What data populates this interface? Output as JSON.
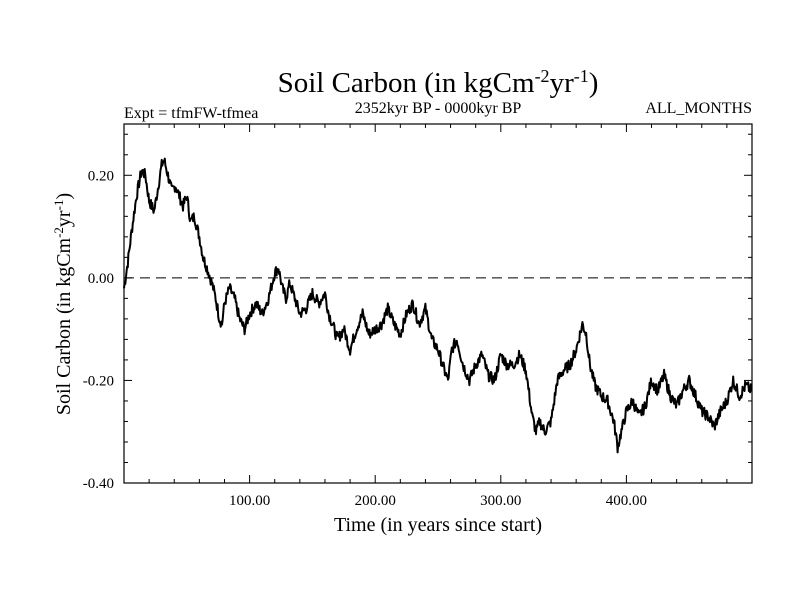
{
  "chart_data": {
    "type": "line",
    "title": "Soil Carbon (in kgCm",
    "title_unit_exponents": [
      "-2",
      "yr",
      "-1",
      ")"
    ],
    "subtitle_left": "Expt = tfmFW-tfmea",
    "subtitle_center": "2352kyr BP - 0000kyr BP",
    "subtitle_right": "ALL_MONTHS",
    "xlabel": "Time (in years since start)",
    "ylabel": "Soil Carbon (in kgCm",
    "ylabel_unit_exponents": [
      "-2",
      "yr",
      "-1",
      ")"
    ],
    "xlim": [
      0,
      500
    ],
    "ylim": [
      -0.4,
      0.3
    ],
    "x_ticks": [
      {
        "value": 100,
        "label": "100.00"
      },
      {
        "value": 200,
        "label": "200.00"
      },
      {
        "value": 300,
        "label": "300.00"
      },
      {
        "value": 400,
        "label": "400.00"
      }
    ],
    "y_ticks": [
      {
        "value": -0.4,
        "label": "-0.40"
      },
      {
        "value": -0.2,
        "label": "-0.20"
      },
      {
        "value": 0.0,
        "label": "0.00"
      },
      {
        "value": 0.2,
        "label": "0.20"
      }
    ],
    "reference_line": {
      "y": 0.0,
      "style": "dashed"
    },
    "line_color": "#000000",
    "series": [
      {
        "name": "Soil Carbon",
        "x": [
          0,
          3,
          6,
          10,
          14,
          17,
          20,
          24,
          28,
          30,
          32,
          35,
          38,
          41,
          44,
          47,
          50,
          53,
          56,
          60,
          63,
          66,
          70,
          73,
          76,
          78,
          80,
          84,
          88,
          92,
          96,
          100,
          105,
          110,
          115,
          120,
          123,
          126,
          129,
          132,
          136,
          140,
          145,
          150,
          155,
          160,
          163,
          166,
          170,
          175,
          180,
          185,
          190,
          195,
          200,
          205,
          210,
          215,
          220,
          225,
          230,
          235,
          240,
          245,
          250,
          255,
          258,
          261,
          265,
          270,
          275,
          280,
          285,
          290,
          295,
          300,
          305,
          310,
          315,
          320,
          325,
          328,
          331,
          335,
          340,
          345,
          350,
          355,
          360,
          365,
          368,
          371,
          375,
          380,
          385,
          390,
          393,
          396,
          400,
          405,
          410,
          415,
          420,
          425,
          430,
          435,
          440,
          445,
          450,
          455,
          460,
          465,
          470,
          475,
          480,
          485,
          490,
          495,
          500
        ],
        "y": [
          -0.02,
          0.03,
          0.09,
          0.16,
          0.21,
          0.2,
          0.15,
          0.13,
          0.19,
          0.22,
          0.23,
          0.2,
          0.17,
          0.18,
          0.16,
          0.14,
          0.16,
          0.11,
          0.12,
          0.08,
          0.04,
          0.02,
          -0.01,
          -0.04,
          -0.08,
          -0.09,
          -0.05,
          -0.02,
          -0.04,
          -0.08,
          -0.1,
          -0.07,
          -0.05,
          -0.07,
          -0.04,
          0.01,
          0.02,
          -0.02,
          -0.04,
          -0.01,
          -0.04,
          -0.07,
          -0.06,
          -0.03,
          -0.05,
          -0.03,
          -0.07,
          -0.09,
          -0.12,
          -0.1,
          -0.14,
          -0.1,
          -0.07,
          -0.11,
          -0.1,
          -0.09,
          -0.06,
          -0.09,
          -0.11,
          -0.07,
          -0.05,
          -0.09,
          -0.06,
          -0.12,
          -0.14,
          -0.18,
          -0.2,
          -0.14,
          -0.12,
          -0.17,
          -0.2,
          -0.17,
          -0.15,
          -0.19,
          -0.2,
          -0.15,
          -0.17,
          -0.17,
          -0.15,
          -0.18,
          -0.27,
          -0.3,
          -0.28,
          -0.3,
          -0.28,
          -0.2,
          -0.18,
          -0.17,
          -0.14,
          -0.09,
          -0.11,
          -0.17,
          -0.21,
          -0.23,
          -0.24,
          -0.28,
          -0.33,
          -0.3,
          -0.26,
          -0.24,
          -0.27,
          -0.25,
          -0.2,
          -0.22,
          -0.19,
          -0.23,
          -0.25,
          -0.22,
          -0.2,
          -0.23,
          -0.26,
          -0.27,
          -0.29,
          -0.26,
          -0.24,
          -0.2,
          -0.23,
          -0.21,
          -0.22
        ]
      }
    ]
  }
}
